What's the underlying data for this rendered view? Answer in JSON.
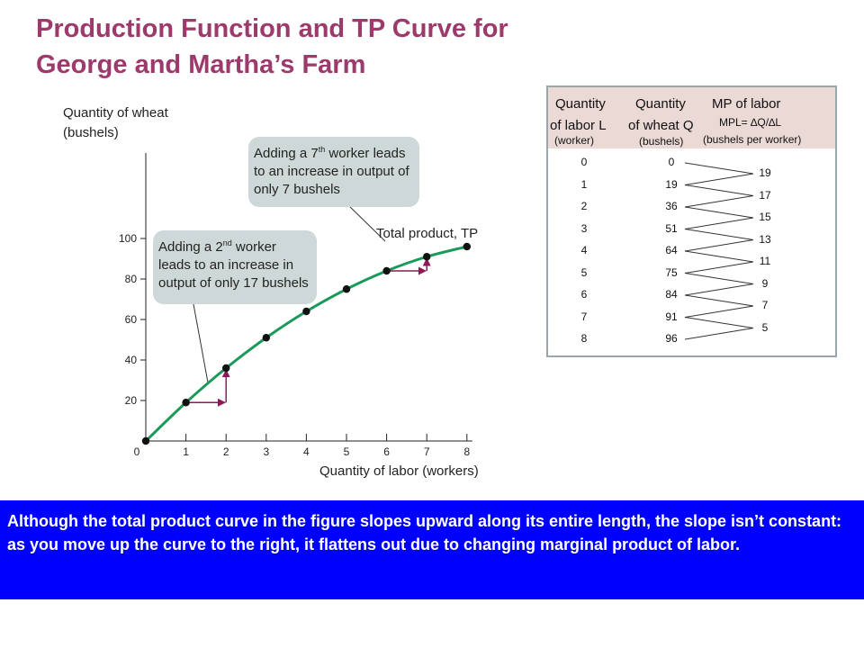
{
  "title_line1": "Production Function and TP Curve for",
  "title_line2": "George and Martha’s Farm",
  "callout_2nd": {
    "pre": "Adding a 2",
    "sup": "nd",
    "post": " worker leads to an increase in output of only 17 bushels"
  },
  "callout_7th": {
    "pre": "Adding a 7",
    "sup": "th",
    "post": " worker leads to an increase in output of only 7 bushels"
  },
  "table": {
    "col1_line1": "Quantity",
    "col1_line2": "of labor L",
    "col1_unit": "(worker)",
    "col2_line1": "Quantity",
    "col2_line2": "of wheat Q",
    "col2_unit": "(bushels)",
    "col3_line1": "MP of labor",
    "col3_formula": "MPL= ∆Q/∆L",
    "col3_unit": "(bushels per worker)",
    "labor": [
      "0",
      "1",
      "2",
      "3",
      "4",
      "5",
      "6",
      "7",
      "8"
    ],
    "wheat": [
      "0",
      "19",
      "36",
      "51",
      "64",
      "75",
      "84",
      "91",
      "96"
    ],
    "mpl": [
      "19",
      "17",
      "15",
      "13",
      "11",
      "9",
      "7",
      "5"
    ]
  },
  "caption": "Although the total product curve in the figure slopes upward along its entire length, the slope isn’t constant: as you move up the curve to the right, it flattens out due to changing marginal product of labor.",
  "chart_data": {
    "type": "line",
    "ylabel_line1": "Quantity of wheat",
    "ylabel_line2": "(bushels)",
    "xlabel": "Quantity of labor (workers)",
    "series_label": "Total product, TP",
    "x": [
      0,
      1,
      2,
      3,
      4,
      5,
      6,
      7,
      8
    ],
    "y": [
      0,
      19,
      36,
      51,
      64,
      75,
      84,
      91,
      96
    ],
    "xlim": [
      0,
      8
    ],
    "ylim": [
      0,
      100
    ],
    "x_ticks": [
      "0",
      "1",
      "2",
      "3",
      "4",
      "5",
      "6",
      "7",
      "8"
    ],
    "y_ticks": [
      "20",
      "40",
      "60",
      "80",
      "100"
    ],
    "y_tick_values": [
      20,
      40,
      60,
      80,
      100
    ],
    "curve_color": "#1a9a5a",
    "point_color": "#111111",
    "arrow_color": "#8b1a5a"
  }
}
